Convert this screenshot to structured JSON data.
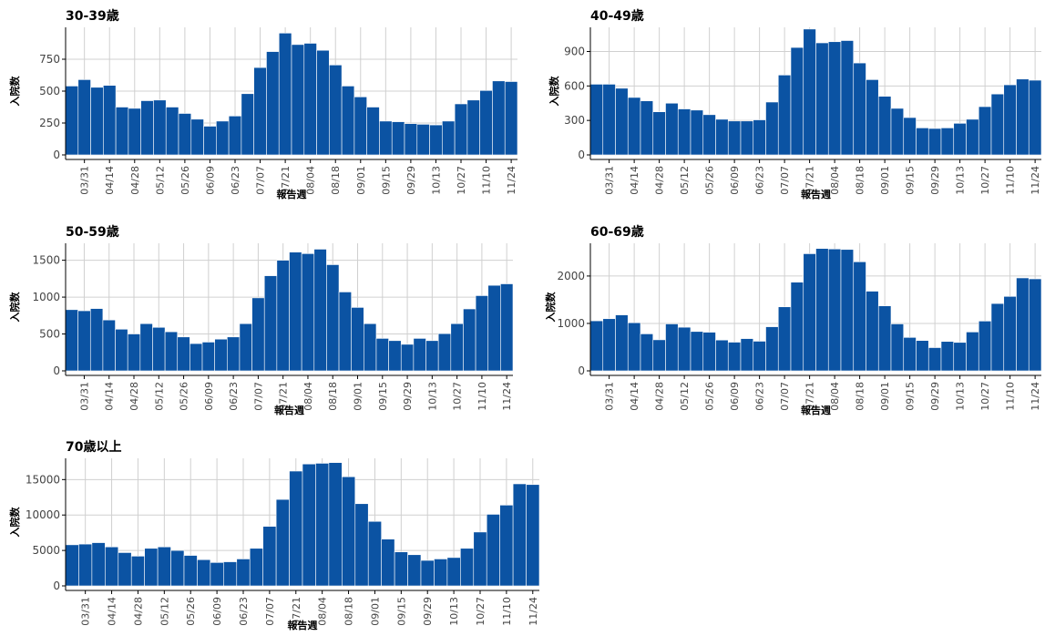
{
  "x_axis_label": "報告週",
  "y_axis_label": "入院数",
  "colors": {
    "bar": "#0b53a3",
    "grid": "#d0d0d0",
    "background": "#ffffff"
  },
  "chart_data": [
    {
      "type": "bar",
      "title": "30-39歳",
      "xlabel": "報告週",
      "ylabel": "入院数",
      "tick_labels": [
        "03/31",
        "04/14",
        "04/28",
        "05/12",
        "05/26",
        "06/09",
        "06/23",
        "07/07",
        "07/21",
        "08/04",
        "08/18",
        "09/01",
        "09/15",
        "09/29",
        "10/13",
        "10/27",
        "11/10",
        "11/24"
      ],
      "yticks": [
        0,
        250,
        500,
        750
      ],
      "ylim": [
        0,
        1000
      ],
      "grid": true,
      "values": [
        540,
        590,
        530,
        545,
        375,
        365,
        425,
        430,
        375,
        325,
        280,
        225,
        265,
        305,
        480,
        685,
        810,
        955,
        865,
        875,
        820,
        705,
        540,
        455,
        375,
        265,
        260,
        245,
        240,
        235,
        265,
        400,
        430,
        505,
        580,
        575
      ]
    },
    {
      "type": "bar",
      "title": "40-49歳",
      "xlabel": "報告週",
      "ylabel": "入院数",
      "tick_labels": [
        "03/31",
        "04/14",
        "04/28",
        "05/12",
        "05/26",
        "06/09",
        "06/23",
        "07/07",
        "07/21",
        "08/04",
        "08/18",
        "09/01",
        "09/15",
        "09/29",
        "10/13",
        "10/27",
        "11/10",
        "11/24"
      ],
      "yticks": [
        0,
        300,
        600,
        900
      ],
      "ylim": [
        0,
        1110
      ],
      "grid": true,
      "values": [
        615,
        615,
        580,
        500,
        470,
        375,
        450,
        400,
        390,
        350,
        310,
        295,
        295,
        305,
        460,
        695,
        935,
        1095,
        975,
        985,
        995,
        800,
        655,
        510,
        405,
        325,
        235,
        230,
        235,
        275,
        310,
        420,
        530,
        610,
        660,
        650
      ]
    },
    {
      "type": "bar",
      "title": "50-59歳",
      "xlabel": "報告週",
      "ylabel": "入院数",
      "tick_labels": [
        "03/31",
        "04/14",
        "04/28",
        "05/12",
        "05/26",
        "06/09",
        "06/23",
        "07/07",
        "07/21",
        "08/04",
        "08/18",
        "09/01",
        "09/15",
        "09/29",
        "10/13",
        "10/27",
        "11/10",
        "11/24"
      ],
      "yticks": [
        0,
        500,
        1000,
        1500
      ],
      "ylim": [
        0,
        1730
      ],
      "grid": true,
      "values": [
        830,
        815,
        845,
        690,
        565,
        500,
        640,
        590,
        530,
        460,
        370,
        390,
        430,
        460,
        640,
        990,
        1290,
        1500,
        1610,
        1590,
        1650,
        1440,
        1070,
        860,
        640,
        440,
        410,
        360,
        440,
        410,
        505,
        640,
        840,
        1020,
        1160,
        1180
      ]
    },
    {
      "type": "bar",
      "title": "60-69歳",
      "xlabel": "報告週",
      "ylabel": "入院数",
      "tick_labels": [
        "03/31",
        "04/14",
        "04/28",
        "05/12",
        "05/26",
        "06/09",
        "06/23",
        "07/07",
        "07/21",
        "08/04",
        "08/18",
        "09/01",
        "09/15",
        "09/29",
        "10/13",
        "10/27",
        "11/10",
        "11/24"
      ],
      "yticks": [
        0,
        1000,
        2000
      ],
      "ylim": [
        0,
        2690
      ],
      "grid": true,
      "values": [
        1055,
        1100,
        1180,
        1015,
        780,
        655,
        990,
        920,
        830,
        815,
        650,
        605,
        680,
        625,
        930,
        1350,
        1870,
        2470,
        2580,
        2570,
        2560,
        2300,
        1680,
        1370,
        990,
        705,
        640,
        490,
        620,
        600,
        820,
        1050,
        1420,
        1570,
        1960,
        1940
      ]
    },
    {
      "type": "bar",
      "title": "70歳以上",
      "xlabel": "報告週",
      "ylabel": "入院数",
      "tick_labels": [
        "03/31",
        "04/14",
        "04/28",
        "05/12",
        "05/26",
        "06/09",
        "06/23",
        "07/07",
        "07/21",
        "08/04",
        "08/18",
        "09/01",
        "09/15",
        "09/29",
        "10/13",
        "10/27",
        "11/10",
        "11/24"
      ],
      "yticks": [
        0,
        5000,
        10000,
        15000
      ],
      "ylim": [
        0,
        18000
      ],
      "grid": true,
      "values": [
        5800,
        5900,
        6100,
        5500,
        4700,
        4200,
        5300,
        5500,
        5000,
        4300,
        3700,
        3300,
        3400,
        3800,
        5300,
        8400,
        12200,
        16200,
        17200,
        17300,
        17400,
        15400,
        11600,
        9100,
        6600,
        4800,
        4400,
        3600,
        3800,
        4000,
        5300,
        7600,
        10100,
        11400,
        14400,
        14300
      ]
    }
  ]
}
